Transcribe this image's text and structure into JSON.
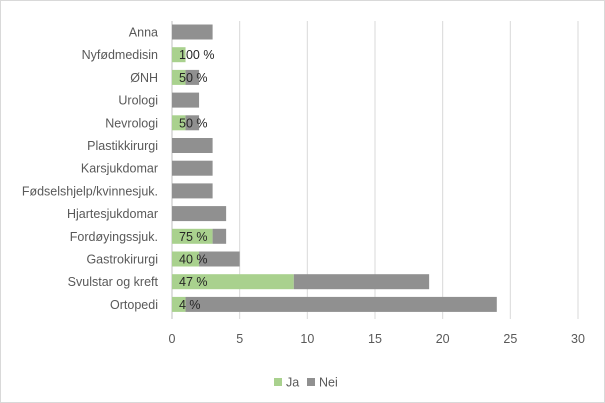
{
  "chart_data": {
    "type": "bar",
    "orientation": "horizontal",
    "stacked": true,
    "categories": [
      "Anna",
      "Nyfødmedisin",
      "ØNH",
      "Urologi",
      "Nevrologi",
      "Plastikkirurgi",
      "Karsjukdomar",
      "Fødselshjelp/kvinnesjuk.",
      "Hjartesjukdomar",
      "Fordøyingssjuk.",
      "Gastrokirurgi",
      "Svulstar og kreft",
      "Ortopedi"
    ],
    "series": [
      {
        "name": "Ja",
        "color": "#a9d18e",
        "values": [
          0,
          1,
          1,
          0,
          1,
          0,
          0,
          0,
          0,
          3,
          2,
          9,
          1
        ]
      },
      {
        "name": "Nei",
        "color": "#909090",
        "values": [
          3,
          0,
          1,
          2,
          1,
          3,
          3,
          3,
          4,
          1,
          3,
          10,
          23
        ]
      }
    ],
    "data_labels": [
      "",
      "100 %",
      "50 %",
      "",
      "50 %",
      "",
      "",
      "",
      "",
      "75 %",
      "40 %",
      "47 %",
      "4 %"
    ],
    "xlim": [
      0,
      30
    ],
    "xticks": [
      0,
      5,
      10,
      15,
      20,
      25,
      30
    ],
    "title": "",
    "xlabel": "",
    "ylabel": "",
    "grid": "vertical",
    "legend_position": "bottom"
  }
}
